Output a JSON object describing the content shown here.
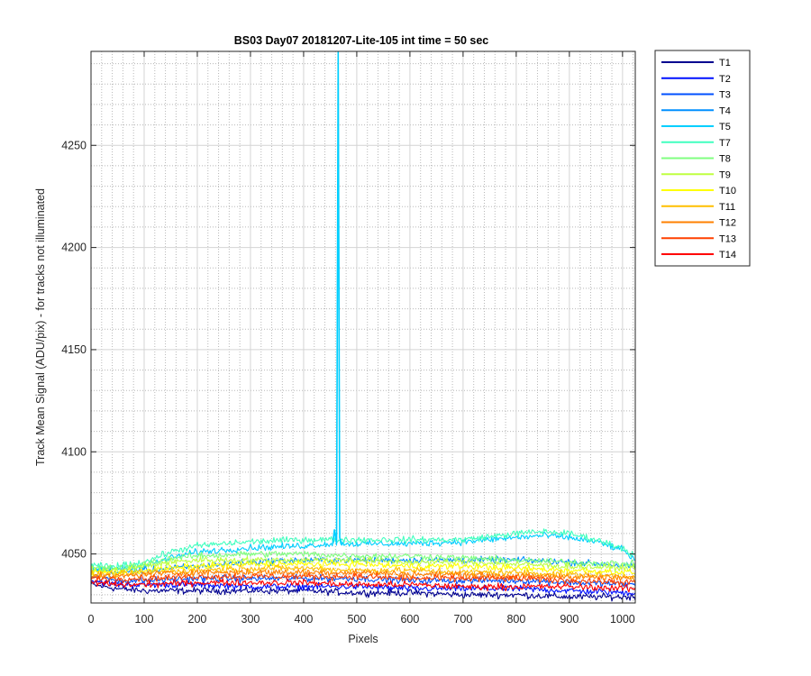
{
  "chart_data": {
    "type": "line",
    "title": "BS03 Day07 20181207-Lite-105 int time = 50 sec",
    "xlabel": "Pixels",
    "ylabel": "Track Mean Signal (ADU/pix) - for tracks not illuminated",
    "xlim": [
      0,
      1024
    ],
    "ylim": [
      4026,
      4296
    ],
    "xticks": [
      0,
      100,
      200,
      300,
      400,
      500,
      600,
      700,
      800,
      900,
      1000
    ],
    "yticks": [
      4050,
      4100,
      4150,
      4200,
      4250
    ],
    "grid": true,
    "minor_grid": true,
    "legend_position": "outside-right",
    "noise_note": "",
    "series": [
      {
        "name": "T1",
        "color": "#00008F",
        "x": [
          0,
          50,
          100,
          200,
          300,
          400,
          500,
          600,
          700,
          800,
          900,
          1024
        ],
        "y": [
          4035,
          4033,
          4032,
          4032,
          4032,
          4032,
          4031,
          4031,
          4030,
          4030,
          4029,
          4029
        ]
      },
      {
        "name": "T2",
        "color": "#0010FF",
        "x": [
          0,
          50,
          100,
          200,
          300,
          400,
          500,
          600,
          700,
          800,
          900,
          1024
        ],
        "y": [
          4037,
          4035,
          4035,
          4035,
          4034,
          4034,
          4034,
          4033,
          4033,
          4033,
          4032,
          4031
        ]
      },
      {
        "name": "T3",
        "color": "#0050FF",
        "x": [
          0,
          50,
          100,
          200,
          300,
          400,
          500,
          600,
          700,
          800,
          900,
          1024
        ],
        "y": [
          4039,
          4037,
          4037,
          4038,
          4038,
          4038,
          4038,
          4037,
          4037,
          4037,
          4036,
          4035
        ]
      },
      {
        "name": "T4",
        "color": "#0090FF",
        "x": [
          0,
          50,
          100,
          200,
          300,
          400,
          500,
          600,
          700,
          800,
          900,
          1024
        ],
        "y": [
          4043,
          4041,
          4042,
          4044,
          4046,
          4047,
          4047,
          4047,
          4047,
          4047,
          4046,
          4044
        ]
      },
      {
        "name": "T5",
        "color": "#00CFFF",
        "x": [
          0,
          100,
          150,
          200,
          300,
          400,
          455,
          458,
          462,
          465,
          468,
          472,
          480,
          500,
          600,
          700,
          800,
          850,
          900,
          950,
          1000,
          1024
        ],
        "y": [
          4042,
          4044,
          4048,
          4051,
          4053,
          4054,
          4055,
          4062,
          4055,
          4296,
          4058,
          4055,
          4055,
          4055,
          4055,
          4056,
          4058,
          4059,
          4058,
          4056,
          4052,
          4047
        ]
      },
      {
        "name": "T7",
        "color": "#40FFBF",
        "x": [
          0,
          50,
          100,
          150,
          200,
          300,
          400,
          500,
          600,
          700,
          800,
          850,
          900,
          950,
          1000,
          1024
        ],
        "y": [
          4044,
          4044,
          4046,
          4051,
          4054,
          4056,
          4057,
          4057,
          4057,
          4057,
          4060,
          4061,
          4060,
          4057,
          4053,
          4049
        ]
      },
      {
        "name": "T8",
        "color": "#80FF80",
        "x": [
          0,
          50,
          100,
          150,
          200,
          300,
          400,
          500,
          600,
          700,
          800,
          900,
          1024
        ],
        "y": [
          4043,
          4043,
          4045,
          4048,
          4049,
          4050,
          4050,
          4049,
          4049,
          4048,
          4047,
          4046,
          4045
        ]
      },
      {
        "name": "T9",
        "color": "#BFFF40",
        "x": [
          0,
          50,
          100,
          150,
          200,
          300,
          400,
          500,
          600,
          700,
          800,
          900,
          1024
        ],
        "y": [
          4042,
          4042,
          4044,
          4046,
          4047,
          4047,
          4047,
          4047,
          4046,
          4046,
          4045,
          4044,
          4043
        ]
      },
      {
        "name": "T10",
        "color": "#FFFF00",
        "x": [
          0,
          50,
          100,
          200,
          300,
          400,
          500,
          600,
          700,
          800,
          900,
          1024
        ],
        "y": [
          4041,
          4041,
          4042,
          4044,
          4045,
          4045,
          4045,
          4044,
          4044,
          4043,
          4042,
          4041
        ]
      },
      {
        "name": "T11",
        "color": "#FFBF00",
        "x": [
          0,
          50,
          100,
          200,
          300,
          400,
          500,
          600,
          700,
          800,
          900,
          1024
        ],
        "y": [
          4040,
          4040,
          4041,
          4042,
          4043,
          4043,
          4042,
          4042,
          4041,
          4041,
          4040,
          4039
        ]
      },
      {
        "name": "T12",
        "color": "#FF8000",
        "x": [
          0,
          50,
          100,
          200,
          300,
          400,
          500,
          600,
          700,
          800,
          900,
          1024
        ],
        "y": [
          4039,
          4039,
          4040,
          4041,
          4041,
          4041,
          4041,
          4040,
          4040,
          4039,
          4039,
          4038
        ]
      },
      {
        "name": "T13",
        "color": "#FF4000",
        "x": [
          0,
          50,
          100,
          200,
          300,
          400,
          500,
          600,
          700,
          800,
          900,
          1024
        ],
        "y": [
          4038,
          4038,
          4038,
          4039,
          4039,
          4039,
          4039,
          4038,
          4038,
          4038,
          4037,
          4036
        ]
      },
      {
        "name": "T14",
        "color": "#FF0000",
        "x": [
          0,
          50,
          100,
          200,
          300,
          400,
          500,
          600,
          700,
          800,
          900,
          1024
        ],
        "y": [
          4036,
          4035,
          4035,
          4036,
          4036,
          4036,
          4035,
          4035,
          4034,
          4034,
          4034,
          4033
        ]
      }
    ]
  }
}
